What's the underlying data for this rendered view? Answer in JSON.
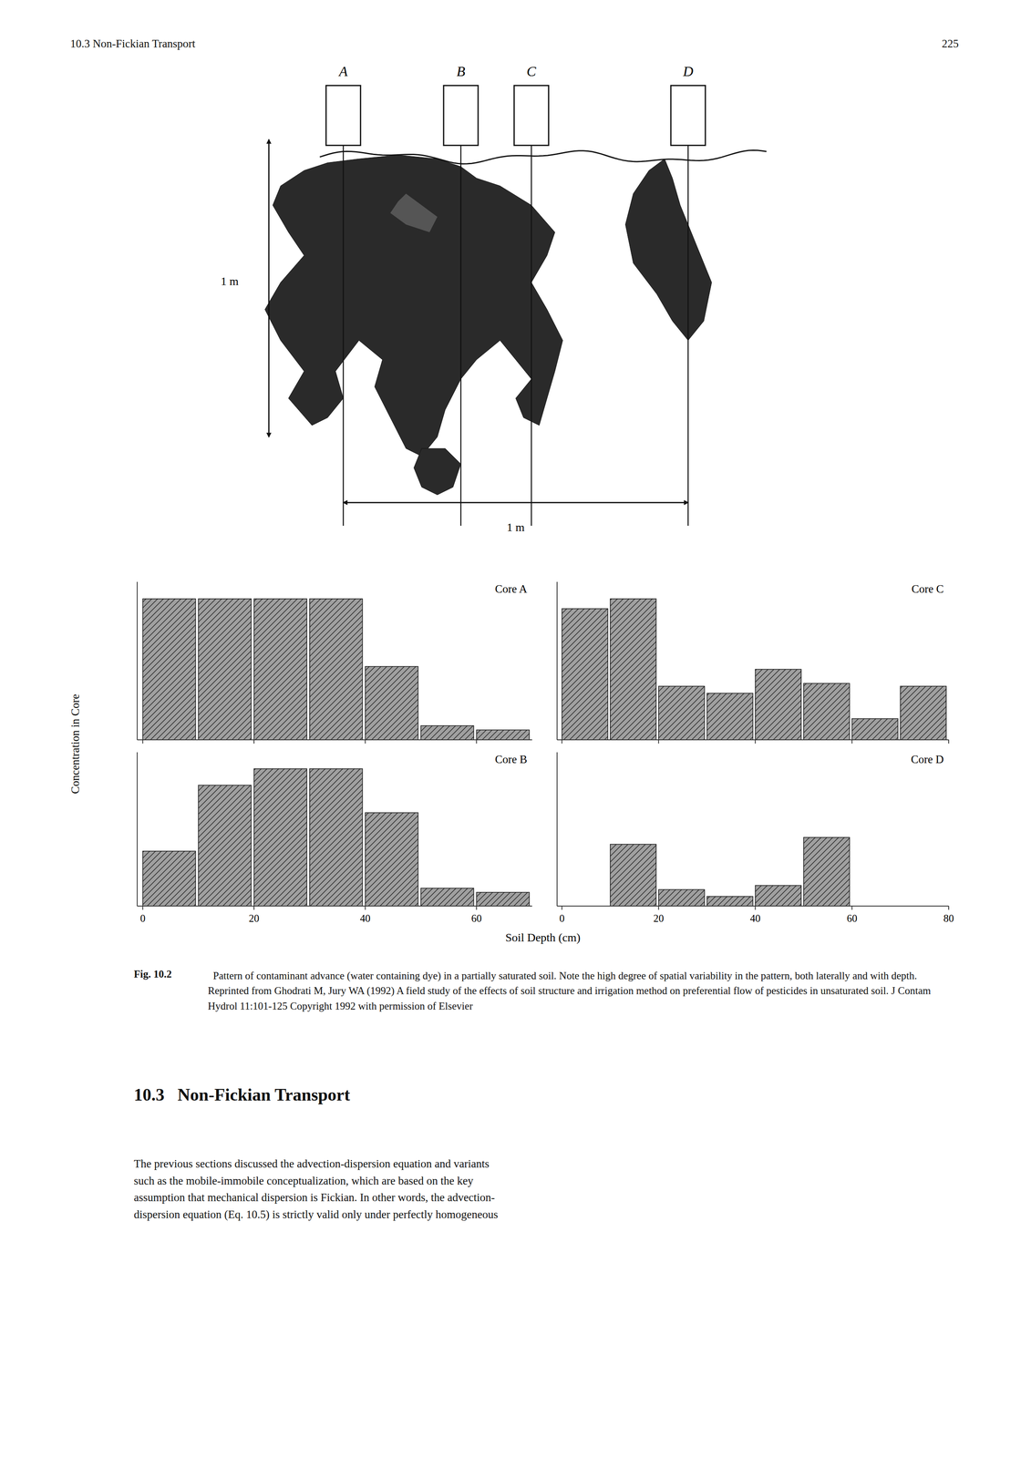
{
  "page": {
    "header_left": "10.3 Non-Fickian Transport",
    "header_right": "225",
    "figure_label": "Fig. 10.2",
    "caption": "  Pattern of contaminant advance (water containing dye) in a partially saturated soil. Note the high degree of spatial variability in the pattern, both laterally and with depth. Reprinted from Ghodrati M, Jury WA (1992) A field study of the effects of soil structure and irrigation method on preferential flow of pesticides in unsaturated soil. J Contam Hydrol 11:101-125 Copyright 1992 with permission of Elsevier",
    "section_header": "10.3   Non-Fickian Transport",
    "body_text": "The previous sections discussed the advection-dispersion equation and variants\nsuch as the mobile-immobile conceptualization, which are based on the key\nassumption that mechanical dispersion is Fickian. In other words, the advection-\ndispersion equation (Eq. 10.5) is strictly valid only under perfectly homogeneous",
    "diagram": {
      "core_labels": [
        "A",
        "B",
        "C",
        "D"
      ],
      "scale_labels": [
        "1 m",
        "1 m"
      ]
    }
  },
  "chart_data": [
    {
      "type": "bar",
      "title": "Core A",
      "x": [
        0,
        10,
        20,
        30,
        40,
        50,
        60
      ],
      "values": [
        1.0,
        1.0,
        1.0,
        1.0,
        0.52,
        0.1,
        0.07
      ],
      "color": "#a0a0a0",
      "xlim": [
        -1,
        70
      ],
      "xticks": [
        0,
        20,
        40,
        60
      ],
      "ylim": [
        0,
        1.12
      ],
      "tick_labels": false,
      "y_label": "Concentration in Core"
    },
    {
      "type": "bar",
      "title": "Core B",
      "x": [
        0,
        10,
        20,
        30,
        40,
        50,
        60
      ],
      "values": [
        0.4,
        0.88,
        1.0,
        1.0,
        0.68,
        0.13,
        0.1
      ],
      "color": "#a0a0a0",
      "xlim": [
        -1,
        70
      ],
      "xticks": [
        0,
        20,
        40,
        60
      ],
      "ylim": [
        0,
        1.12
      ],
      "tick_labels": "x",
      "x_label": "Soil Depth (cm)"
    },
    {
      "type": "bar",
      "title": "Core C",
      "x": [
        0,
        10,
        20,
        30,
        40,
        50,
        60,
        70
      ],
      "values": [
        0.93,
        1.0,
        0.38,
        0.33,
        0.5,
        0.4,
        0.15,
        0.38
      ],
      "color": "#a0a0a0",
      "xlim": [
        -1,
        80
      ],
      "xticks": [
        0,
        20,
        40,
        60,
        80
      ],
      "ylim": [
        0,
        1.12
      ],
      "tick_labels": false
    },
    {
      "type": "bar",
      "title": "Core D",
      "x": [
        0,
        10,
        20,
        30,
        40,
        50,
        60,
        70
      ],
      "values": [
        0.0,
        0.45,
        0.12,
        0.07,
        0.15,
        0.5,
        0.0,
        0.0
      ],
      "color": "#a0a0a0",
      "xlim": [
        -1,
        80
      ],
      "xticks": [
        0,
        20,
        40,
        60,
        80
      ],
      "ylim": [
        0,
        1.12
      ],
      "tick_labels": "x"
    }
  ]
}
